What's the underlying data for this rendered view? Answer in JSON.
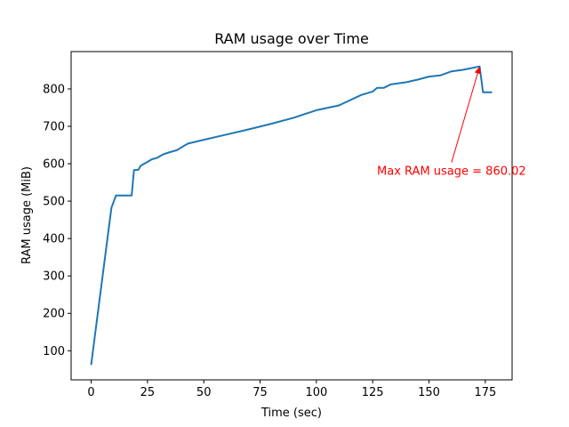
{
  "chart_data": {
    "type": "line",
    "title": "RAM usage over Time",
    "xlabel": "Time (sec)",
    "ylabel": "RAM usage (MiB)",
    "xlim": [
      -8.9,
      186.9
    ],
    "ylim": [
      22.2,
      899.8
    ],
    "xticks": [
      0,
      25,
      50,
      75,
      100,
      125,
      150,
      175
    ],
    "yticks": [
      100,
      200,
      300,
      400,
      500,
      600,
      700,
      800
    ],
    "grid": false,
    "legend": "none",
    "series": [
      {
        "color": "#1f77b4",
        "points": [
          [
            0,
            62
          ],
          [
            9,
            482
          ],
          [
            11,
            515
          ],
          [
            18,
            515
          ],
          [
            19,
            583
          ],
          [
            21,
            584
          ],
          [
            22,
            595
          ],
          [
            25,
            605
          ],
          [
            27,
            612
          ],
          [
            29,
            615
          ],
          [
            32,
            625
          ],
          [
            35,
            631
          ],
          [
            38,
            636
          ],
          [
            41,
            647
          ],
          [
            43,
            654
          ],
          [
            50,
            664
          ],
          [
            60,
            678
          ],
          [
            70,
            692
          ],
          [
            80,
            707
          ],
          [
            90,
            723
          ],
          [
            100,
            743
          ],
          [
            110,
            756
          ],
          [
            120,
            784
          ],
          [
            125,
            793
          ],
          [
            127,
            803
          ],
          [
            130,
            803
          ],
          [
            133,
            812
          ],
          [
            140,
            818
          ],
          [
            145,
            825
          ],
          [
            150,
            833
          ],
          [
            155,
            836
          ],
          [
            160,
            847
          ],
          [
            165,
            851
          ],
          [
            170,
            857
          ],
          [
            172.5,
            860.02
          ],
          [
            174,
            791
          ],
          [
            178,
            791
          ]
        ]
      }
    ],
    "annotation": {
      "text": "Max RAM usage = 860.02",
      "color": "#ff0000",
      "point": [
        172.5,
        860.02
      ],
      "text_at": [
        160,
        570
      ]
    }
  }
}
